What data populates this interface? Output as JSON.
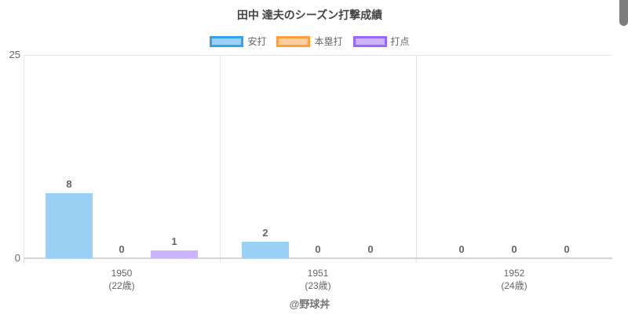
{
  "page": {
    "footer": "@野球丼"
  },
  "chart_data": {
    "type": "bar",
    "title": "田中 達夫のシーズン打撃成績",
    "categories": [
      "1950",
      "1951",
      "1952"
    ],
    "category_sublabels": [
      "(22歳)",
      "(23歳)",
      "(24歳)"
    ],
    "series": [
      {
        "name": "安打",
        "values": [
          8,
          2,
          0
        ],
        "fill": "#9bd1f5",
        "border": "#36a2eb"
      },
      {
        "name": "本塁打",
        "values": [
          0,
          0,
          0
        ],
        "fill": "#ffcf9f",
        "border": "#ff9f40"
      },
      {
        "name": "打点",
        "values": [
          1,
          0,
          0
        ],
        "fill": "#ccb3ff",
        "border": "#9966ff"
      }
    ],
    "ylim": [
      0,
      25
    ],
    "yticks": [
      0,
      25
    ],
    "xlabel": "",
    "ylabel": "",
    "grid": true,
    "legend_position": "top",
    "data_labels": true
  }
}
